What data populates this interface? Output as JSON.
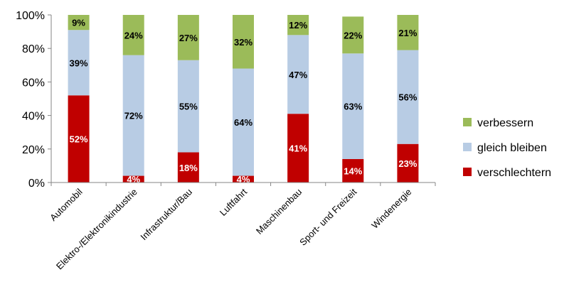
{
  "chart_data": {
    "type": "bar",
    "stacked": true,
    "percent": true,
    "categories": [
      "Automobil",
      "Elektro-/Elektronikindustrie",
      "Infrastruktur/Bau",
      "Luftfahrt",
      "Maschinenbau",
      "Sport- und Freizeit",
      "Windenergie"
    ],
    "series": [
      {
        "name": "verschlechtern",
        "color": "#c00000",
        "values": [
          52,
          4,
          18,
          4,
          41,
          14,
          23
        ],
        "labels": [
          "52%",
          "4%",
          "18%",
          "4%",
          "41%",
          "14%",
          "23%"
        ]
      },
      {
        "name": "gleich bleiben",
        "color": "#b8cce4",
        "values": [
          39,
          72,
          55,
          64,
          47,
          63,
          56
        ],
        "labels": [
          "39%",
          "72%",
          "55%",
          "64%",
          "47%",
          "63%",
          "56%"
        ]
      },
      {
        "name": "verbessern",
        "color": "#9bbb59",
        "values": [
          9,
          24,
          27,
          32,
          12,
          22,
          21
        ],
        "labels": [
          "9%",
          "24%",
          "27%",
          "32%",
          "12%",
          "22%",
          "21%"
        ]
      }
    ],
    "legend_order": [
      "verbessern",
      "gleich bleiben",
      "verschlechtern"
    ],
    "legend_position": "right",
    "ylim": [
      0,
      100
    ],
    "yticks": [
      "0%",
      "20%",
      "40%",
      "60%",
      "80%",
      "100%"
    ],
    "title": "",
    "xlabel": "",
    "ylabel": ""
  }
}
